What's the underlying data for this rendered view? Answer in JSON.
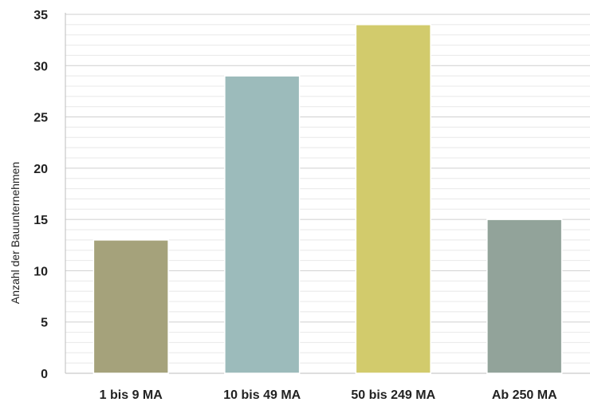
{
  "chart_data": {
    "type": "bar",
    "categories": [
      "1 bis 9 MA",
      "10 bis 49 MA",
      "50 bis 249 MA",
      "Ab 250 MA"
    ],
    "values": [
      13,
      29,
      34,
      15
    ],
    "title": "",
    "xlabel": "",
    "ylabel": "Anzahl der Bauunternehmen",
    "ylim": [
      0,
      35
    ],
    "yticks": [
      0,
      5,
      10,
      15,
      20,
      25,
      30,
      35
    ],
    "grid": true,
    "minor_grid": true,
    "legend": "none",
    "colors": [
      "#a5a27b",
      "#9cbbbb",
      "#d2cb6c",
      "#92a39a"
    ]
  }
}
